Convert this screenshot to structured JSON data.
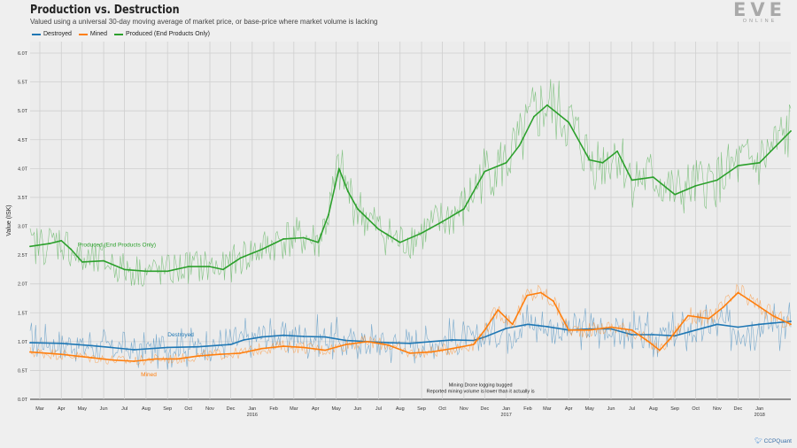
{
  "header": {
    "title": "Production vs. Destruction",
    "subtitle": "Valued using a universal 30-day moving average of market price, or base-price where market volume is lacking"
  },
  "logo": {
    "main": "EVE",
    "sub": "ONLINE"
  },
  "credit": {
    "handle": "CCPQuant",
    "icon": "twitter-bird-icon"
  },
  "colors": {
    "destroyed": "#1f77b4",
    "mined": "#ff7f0e",
    "produced": "#2ca02c"
  },
  "chart_data": {
    "type": "line",
    "title": "Production vs. Destruction",
    "ylabel": "Value (ISK)",
    "xlabel": "",
    "ylim": [
      0,
      6.2
    ],
    "yticks": [
      0,
      0.5,
      1.0,
      1.5,
      2.0,
      2.5,
      3.0,
      3.5,
      4.0,
      4.5,
      5.0,
      5.5,
      6.0
    ],
    "ytick_labels": [
      "0.0T",
      "0.5T",
      "1.0T",
      "1.5T",
      "2.0T",
      "2.5T",
      "3.0T",
      "3.5T",
      "4.0T",
      "4.5T",
      "5.0T",
      "5.5T",
      "6.0T"
    ],
    "x_start": "2015-02-15",
    "x_end": "2018-02-15",
    "grid": true,
    "legend_position": "top-left",
    "xticks": [
      {
        "date": "2015-03-01",
        "label": "Mar",
        "year": ""
      },
      {
        "date": "2015-04-01",
        "label": "Apr",
        "year": ""
      },
      {
        "date": "2015-05-01",
        "label": "May",
        "year": ""
      },
      {
        "date": "2015-06-01",
        "label": "Jun",
        "year": ""
      },
      {
        "date": "2015-07-01",
        "label": "Jul",
        "year": ""
      },
      {
        "date": "2015-08-01",
        "label": "Aug",
        "year": ""
      },
      {
        "date": "2015-09-01",
        "label": "Sep",
        "year": ""
      },
      {
        "date": "2015-10-01",
        "label": "Oct",
        "year": ""
      },
      {
        "date": "2015-11-01",
        "label": "Nov",
        "year": ""
      },
      {
        "date": "2015-12-01",
        "label": "Dec",
        "year": ""
      },
      {
        "date": "2016-01-01",
        "label": "Jan",
        "year": "2016"
      },
      {
        "date": "2016-02-01",
        "label": "Feb",
        "year": ""
      },
      {
        "date": "2016-03-01",
        "label": "Mar",
        "year": ""
      },
      {
        "date": "2016-04-01",
        "label": "Apr",
        "year": ""
      },
      {
        "date": "2016-05-01",
        "label": "May",
        "year": ""
      },
      {
        "date": "2016-06-01",
        "label": "Jun",
        "year": ""
      },
      {
        "date": "2016-07-01",
        "label": "Jul",
        "year": ""
      },
      {
        "date": "2016-08-01",
        "label": "Aug",
        "year": ""
      },
      {
        "date": "2016-09-01",
        "label": "Sep",
        "year": ""
      },
      {
        "date": "2016-10-01",
        "label": "Oct",
        "year": ""
      },
      {
        "date": "2016-11-01",
        "label": "Nov",
        "year": ""
      },
      {
        "date": "2016-12-01",
        "label": "Dec",
        "year": ""
      },
      {
        "date": "2017-01-01",
        "label": "Jan",
        "year": "2017"
      },
      {
        "date": "2017-02-01",
        "label": "Feb",
        "year": ""
      },
      {
        "date": "2017-03-01",
        "label": "Mar",
        "year": ""
      },
      {
        "date": "2017-04-01",
        "label": "Apr",
        "year": ""
      },
      {
        "date": "2017-05-01",
        "label": "May",
        "year": ""
      },
      {
        "date": "2017-06-01",
        "label": "Jun",
        "year": ""
      },
      {
        "date": "2017-07-01",
        "label": "Jul",
        "year": ""
      },
      {
        "date": "2017-08-01",
        "label": "Aug",
        "year": ""
      },
      {
        "date": "2017-09-01",
        "label": "Sep",
        "year": ""
      },
      {
        "date": "2017-10-01",
        "label": "Oct",
        "year": ""
      },
      {
        "date": "2017-11-01",
        "label": "Nov",
        "year": ""
      },
      {
        "date": "2017-12-01",
        "label": "Dec",
        "year": ""
      },
      {
        "date": "2018-01-01",
        "label": "Jan",
        "year": "2018"
      }
    ],
    "series": [
      {
        "name": "Destroyed",
        "key": "destroyed",
        "color": "#1f77b4",
        "label_text": "Destroyed",
        "label_at": {
          "date": "2015-09-20",
          "value": 1.09
        },
        "x": [
          "2015-02-15",
          "2015-04-01",
          "2015-05-15",
          "2015-07-15",
          "2015-09-01",
          "2015-10-15",
          "2015-12-01",
          "2015-12-20",
          "2016-01-15",
          "2016-02-15",
          "2016-03-15",
          "2016-04-15",
          "2016-05-15",
          "2016-06-15",
          "2016-07-15",
          "2016-08-15",
          "2016-09-15",
          "2016-10-15",
          "2016-11-15",
          "2016-12-01",
          "2017-01-01",
          "2017-02-01",
          "2017-03-01",
          "2017-04-01",
          "2017-05-01",
          "2017-06-01",
          "2017-07-01",
          "2017-08-01",
          "2017-09-01",
          "2017-10-01",
          "2017-11-01",
          "2017-12-01",
          "2018-01-01",
          "2018-02-15"
        ],
        "values": [
          0.98,
          0.97,
          0.93,
          0.86,
          0.9,
          0.91,
          0.95,
          1.03,
          1.08,
          1.11,
          1.09,
          1.08,
          1.02,
          1.0,
          0.98,
          0.97,
          1.0,
          1.03,
          1.02,
          1.08,
          1.23,
          1.3,
          1.26,
          1.2,
          1.22,
          1.22,
          1.12,
          1.12,
          1.1,
          1.2,
          1.3,
          1.25,
          1.3,
          1.35
        ]
      },
      {
        "name": "Mined",
        "key": "mined",
        "color": "#ff7f0e",
        "label_text": "Mined",
        "label_at": {
          "date": "2015-08-05",
          "value": 0.4
        },
        "x": [
          "2015-02-15",
          "2015-04-01",
          "2015-05-15",
          "2015-06-15",
          "2015-07-15",
          "2015-08-15",
          "2015-09-15",
          "2015-10-15",
          "2015-11-15",
          "2015-12-15",
          "2016-01-15",
          "2016-02-15",
          "2016-03-15",
          "2016-04-15",
          "2016-05-15",
          "2016-06-15",
          "2016-07-15",
          "2016-08-15",
          "2016-09-15",
          "2016-10-15",
          "2016-11-15",
          "2016-12-01",
          "2016-12-20",
          "2017-01-10",
          "2017-01-31",
          "2017-02-20",
          "2017-03-10",
          "2017-04-01",
          "2017-05-01",
          "2017-06-01",
          "2017-07-01",
          "2017-07-25",
          "2017-08-10",
          "2017-08-25",
          "2017-09-20",
          "2017-10-20",
          "2017-11-10",
          "2017-12-01",
          "2017-12-20",
          "2018-01-20",
          "2018-02-15"
        ],
        "values": [
          0.82,
          0.78,
          0.72,
          0.68,
          0.66,
          0.7,
          0.7,
          0.75,
          0.78,
          0.8,
          0.88,
          0.92,
          0.9,
          0.85,
          0.95,
          1.0,
          0.94,
          0.8,
          0.82,
          0.88,
          0.95,
          1.2,
          1.55,
          1.3,
          1.8,
          1.85,
          1.7,
          1.2,
          1.2,
          1.25,
          1.2,
          1.0,
          0.85,
          1.05,
          1.45,
          1.4,
          1.6,
          1.85,
          1.7,
          1.45,
          1.3
        ]
      },
      {
        "name": "Produced (End Products Only)",
        "key": "produced",
        "color": "#2ca02c",
        "label_text": "Produced (End Products Only)",
        "label_at": {
          "date": "2015-06-20",
          "value": 2.65
        },
        "x": [
          "2015-02-15",
          "2015-03-15",
          "2015-04-01",
          "2015-04-15",
          "2015-05-01",
          "2015-06-01",
          "2015-07-01",
          "2015-08-01",
          "2015-09-01",
          "2015-10-01",
          "2015-11-01",
          "2015-11-20",
          "2015-12-15",
          "2016-01-15",
          "2016-02-15",
          "2016-03-15",
          "2016-04-05",
          "2016-04-20",
          "2016-05-05",
          "2016-05-18",
          "2016-06-01",
          "2016-07-01",
          "2016-08-01",
          "2016-09-01",
          "2016-10-01",
          "2016-11-01",
          "2016-12-01",
          "2017-01-01",
          "2017-01-20",
          "2017-02-10",
          "2017-03-01",
          "2017-04-01",
          "2017-05-01",
          "2017-05-20",
          "2017-06-10",
          "2017-07-01",
          "2017-08-01",
          "2017-09-01",
          "2017-10-01",
          "2017-11-01",
          "2017-12-01",
          "2018-01-01",
          "2018-02-15"
        ],
        "values": [
          2.65,
          2.7,
          2.75,
          2.6,
          2.38,
          2.4,
          2.25,
          2.22,
          2.22,
          2.3,
          2.3,
          2.25,
          2.45,
          2.6,
          2.78,
          2.8,
          2.72,
          3.2,
          4.0,
          3.6,
          3.3,
          2.95,
          2.72,
          2.88,
          3.08,
          3.3,
          3.95,
          4.1,
          4.4,
          4.9,
          5.1,
          4.8,
          4.15,
          4.1,
          4.3,
          3.8,
          3.85,
          3.55,
          3.7,
          3.8,
          4.05,
          4.1,
          4.65
        ]
      }
    ],
    "annotations": [
      {
        "lines": [
          "Mining Drone logging bugged",
          "Reported mining volume is lower than it actually is"
        ],
        "date": "2016-11-25",
        "value": 0.22
      }
    ]
  }
}
